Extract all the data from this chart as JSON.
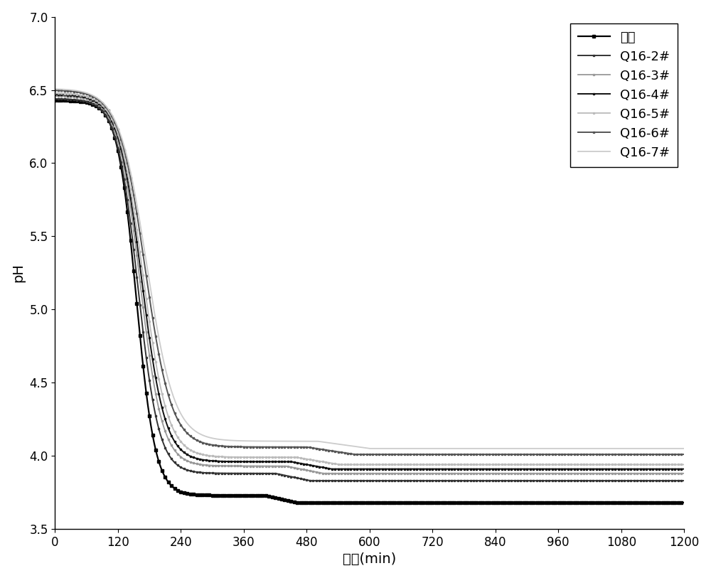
{
  "title": "",
  "xlabel": "时间(min)",
  "ylabel": "pH",
  "xlim": [
    0,
    1200
  ],
  "ylim": [
    3.5,
    7.0
  ],
  "xticks": [
    0,
    120,
    240,
    360,
    480,
    600,
    720,
    840,
    960,
    1080,
    1200
  ],
  "yticks": [
    3.5,
    4.0,
    4.5,
    5.0,
    5.5,
    6.0,
    6.5,
    7.0
  ],
  "series": [
    {
      "label": "原始",
      "color": "#000000",
      "linewidth": 1.6,
      "marker": "s",
      "markersize": 2.2,
      "markevery": 12,
      "start_ph": 6.43,
      "k1": 0.055,
      "t1": 155,
      "k2": 0.0008,
      "t2": 400,
      "end_ph": 3.73
    },
    {
      "label": "Q16-2#",
      "color": "#333333",
      "linewidth": 1.4,
      "marker": "s",
      "markersize": 2.0,
      "markevery": 12,
      "start_ph": 6.44,
      "k1": 0.05,
      "t1": 158,
      "k2": 0.00075,
      "t2": 420,
      "end_ph": 3.88
    },
    {
      "label": "Q16-3#",
      "color": "#999999",
      "linewidth": 1.3,
      "marker": "s",
      "markersize": 1.8,
      "markevery": 12,
      "start_ph": 6.46,
      "k1": 0.047,
      "t1": 162,
      "k2": 0.0007,
      "t2": 440,
      "end_ph": 3.93
    },
    {
      "label": "Q16-4#",
      "color": "#111111",
      "linewidth": 1.4,
      "marker": "s",
      "markersize": 2.0,
      "markevery": 12,
      "start_ph": 6.47,
      "k1": 0.045,
      "t1": 165,
      "k2": 0.00065,
      "t2": 450,
      "end_ph": 3.96
    },
    {
      "label": "Q16-5#",
      "color": "#bbbbbb",
      "linewidth": 1.3,
      "marker": "s",
      "markersize": 1.8,
      "markevery": 12,
      "start_ph": 6.48,
      "k1": 0.043,
      "t1": 168,
      "k2": 0.0006,
      "t2": 460,
      "end_ph": 3.99
    },
    {
      "label": "Q16-6#",
      "color": "#555555",
      "linewidth": 1.4,
      "marker": "s",
      "markersize": 2.0,
      "markevery": 12,
      "start_ph": 6.5,
      "k1": 0.04,
      "t1": 172,
      "k2": 0.00055,
      "t2": 480,
      "end_ph": 4.06
    },
    {
      "label": "Q16-7#",
      "color": "#cccccc",
      "linewidth": 1.3,
      "marker": "none",
      "markersize": 1.8,
      "markevery": 12,
      "start_ph": 6.51,
      "k1": 0.038,
      "t1": 175,
      "k2": 0.0005,
      "t2": 500,
      "end_ph": 4.1
    }
  ],
  "legend_fontsize": 13,
  "axis_fontsize": 14,
  "tick_fontsize": 12,
  "background_color": "#ffffff"
}
